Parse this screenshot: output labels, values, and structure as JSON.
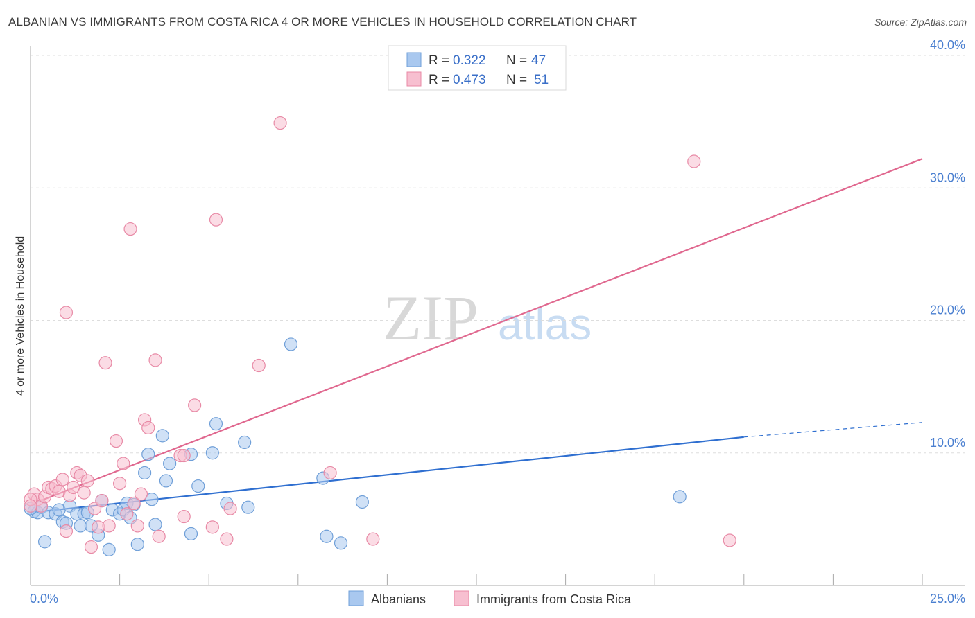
{
  "chart_data": {
    "type": "scatter",
    "title": "ALBANIAN VS IMMIGRANTS FROM COSTA RICA 4 OR MORE VEHICLES IN HOUSEHOLD CORRELATION CHART",
    "source": "Source: ZipAtlas.com",
    "xlabel": "",
    "ylabel": "4 or more Vehicles in Household",
    "xlim": [
      0,
      25
    ],
    "ylim": [
      0,
      40
    ],
    "x_tick_labels": {
      "min": "0.0%",
      "max": "25.0%"
    },
    "y_ticks": [
      {
        "value": 10,
        "label": "10.0%"
      },
      {
        "value": 20,
        "label": "20.0%"
      },
      {
        "value": 30,
        "label": "30.0%"
      },
      {
        "value": 40,
        "label": "40.0%"
      }
    ],
    "grid": true,
    "watermark": {
      "zip": "ZIP",
      "atlas": "atlas"
    },
    "legend": {
      "position": "top-center",
      "entries": [
        {
          "series": "Albanians",
          "r_label": "R =",
          "r_value": "0.322",
          "n_label": "N =",
          "n_value": "47"
        },
        {
          "series": "Immigrants from Costa Rica",
          "r_label": "R =",
          "r_value": "0.473",
          "n_label": "N =",
          "n_value": "51"
        }
      ]
    },
    "series": [
      {
        "name": "Albanians",
        "color": "#a9c8ef",
        "stroke": "#6f9fd8",
        "line_color": "#2f6fd0",
        "trend": {
          "x0": 0,
          "y0": 5.5,
          "x1": 20,
          "y1": 11.2,
          "dashed_to_x": 25,
          "dashed_to_y": 12.3
        },
        "points": [
          [
            0.1,
            5.6
          ],
          [
            0.2,
            5.5
          ],
          [
            0.3,
            5.9
          ],
          [
            0.4,
            3.3
          ],
          [
            0.5,
            5.5
          ],
          [
            0.7,
            5.4
          ],
          [
            0.8,
            5.7
          ],
          [
            0.9,
            4.8
          ],
          [
            1.0,
            4.7
          ],
          [
            1.1,
            6.0
          ],
          [
            1.3,
            5.4
          ],
          [
            1.4,
            4.5
          ],
          [
            1.5,
            5.4
          ],
          [
            1.6,
            5.5
          ],
          [
            1.7,
            4.5
          ],
          [
            1.9,
            3.8
          ],
          [
            2.0,
            6.4
          ],
          [
            2.2,
            2.7
          ],
          [
            2.3,
            5.7
          ],
          [
            2.5,
            5.4
          ],
          [
            2.6,
            5.7
          ],
          [
            2.7,
            6.2
          ],
          [
            2.8,
            5.1
          ],
          [
            2.9,
            6.1
          ],
          [
            3.0,
            3.1
          ],
          [
            3.2,
            8.5
          ],
          [
            3.3,
            9.9
          ],
          [
            3.4,
            6.5
          ],
          [
            3.5,
            4.6
          ],
          [
            3.7,
            11.3
          ],
          [
            3.8,
            7.9
          ],
          [
            3.9,
            9.2
          ],
          [
            4.5,
            3.9
          ],
          [
            4.5,
            9.9
          ],
          [
            4.7,
            7.5
          ],
          [
            5.1,
            10.0
          ],
          [
            5.2,
            12.2
          ],
          [
            5.5,
            6.2
          ],
          [
            6.0,
            10.8
          ],
          [
            6.1,
            5.9
          ],
          [
            7.3,
            18.2
          ],
          [
            8.2,
            8.1
          ],
          [
            8.3,
            3.7
          ],
          [
            8.7,
            3.2
          ],
          [
            9.3,
            6.3
          ],
          [
            18.2,
            6.7
          ],
          [
            0.0,
            5.8
          ]
        ]
      },
      {
        "name": "Immigrants from Costa Rica",
        "color": "#f7bfd0",
        "stroke": "#e88aa6",
        "line_color": "#e0688f",
        "trend": {
          "x0": 0,
          "y0": 6.1,
          "x1": 25,
          "y1": 32.2
        },
        "points": [
          [
            0.1,
            6.9
          ],
          [
            0.2,
            6.5
          ],
          [
            0.3,
            6.0
          ],
          [
            0.4,
            6.7
          ],
          [
            0.5,
            7.4
          ],
          [
            0.6,
            7.3
          ],
          [
            0.7,
            7.5
          ],
          [
            0.8,
            7.1
          ],
          [
            0.9,
            8.0
          ],
          [
            1.0,
            4.1
          ],
          [
            1.1,
            6.8
          ],
          [
            1.2,
            7.4
          ],
          [
            1.3,
            8.5
          ],
          [
            1.4,
            8.3
          ],
          [
            1.5,
            7.0
          ],
          [
            1.6,
            7.9
          ],
          [
            1.7,
            2.9
          ],
          [
            1.8,
            5.8
          ],
          [
            1.9,
            4.4
          ],
          [
            2.0,
            6.4
          ],
          [
            2.1,
            16.8
          ],
          [
            2.2,
            4.5
          ],
          [
            2.4,
            10.9
          ],
          [
            2.5,
            7.7
          ],
          [
            2.6,
            9.2
          ],
          [
            2.7,
            5.4
          ],
          [
            2.8,
            26.9
          ],
          [
            2.9,
            6.2
          ],
          [
            3.0,
            4.5
          ],
          [
            3.1,
            6.9
          ],
          [
            3.2,
            12.5
          ],
          [
            3.3,
            11.9
          ],
          [
            3.5,
            17.0
          ],
          [
            3.6,
            3.7
          ],
          [
            4.2,
            9.8
          ],
          [
            4.3,
            5.2
          ],
          [
            4.6,
            13.6
          ],
          [
            5.1,
            4.4
          ],
          [
            5.2,
            27.6
          ],
          [
            5.5,
            3.5
          ],
          [
            5.6,
            5.8
          ],
          [
            6.4,
            16.6
          ],
          [
            7.0,
            34.9
          ],
          [
            8.4,
            8.5
          ],
          [
            9.6,
            3.5
          ],
          [
            18.6,
            32.0
          ],
          [
            19.6,
            3.4
          ],
          [
            0.0,
            6.5
          ],
          [
            0.0,
            6.0
          ],
          [
            1.0,
            20.6
          ],
          [
            4.3,
            9.8
          ]
        ]
      }
    ]
  }
}
